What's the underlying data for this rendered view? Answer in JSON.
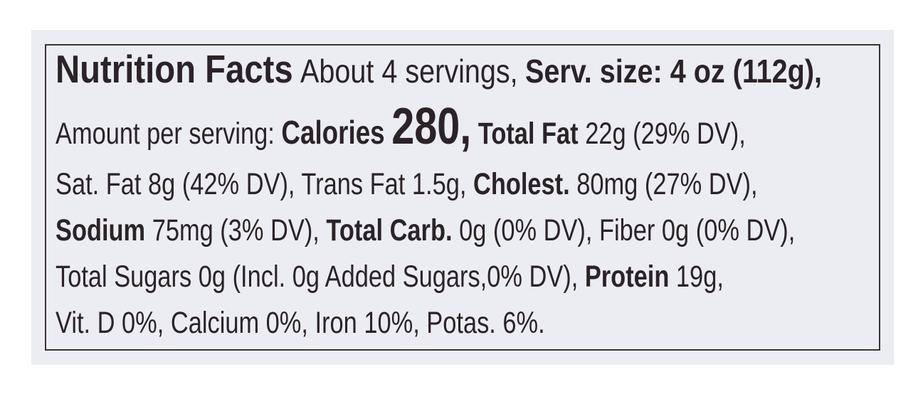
{
  "label": {
    "lines": [
      [
        "Nutrition Facts",
        "About 4 servings,",
        "Serv. size: 4 oz (112g),"
      ],
      [
        "Amount per serving:",
        "Calories",
        "280,",
        "Total Fat",
        "22g (29% DV),"
      ],
      [
        "Sat. Fat 8g (42% DV), Trans Fat 1.5g,",
        "Cholest.",
        "80mg (27% DV),"
      ],
      [
        "Sodium",
        "75mg (3% DV),",
        "Total Carb.",
        "0g (0% DV), Fiber 0g (0% DV),"
      ],
      [
        "Total Sugars 0g (Incl. 0g Added Sugars,0% DV),",
        "Protein",
        "19g,"
      ],
      [
        "Vit. D 0%, Calcium 0%, Iron 10%, Potas. 6%."
      ]
    ]
  }
}
